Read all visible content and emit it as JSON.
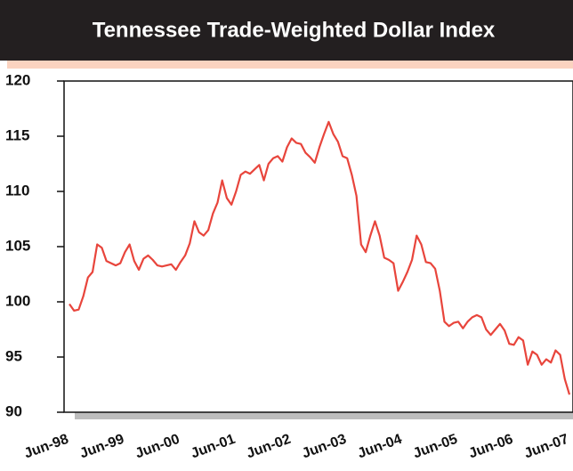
{
  "chart_data": {
    "type": "line",
    "title": "Tennessee Trade-Weighted Dollar Index",
    "categories": [
      "Jun-98",
      null,
      null,
      null,
      null,
      null,
      null,
      null,
      null,
      null,
      null,
      null,
      "Jun-99",
      null,
      null,
      null,
      null,
      null,
      null,
      null,
      null,
      null,
      null,
      null,
      "Jun-00",
      null,
      null,
      null,
      null,
      null,
      null,
      null,
      null,
      null,
      null,
      null,
      "Jun-01",
      null,
      null,
      null,
      null,
      null,
      null,
      null,
      null,
      null,
      null,
      null,
      "Jun-02",
      null,
      null,
      null,
      null,
      null,
      null,
      null,
      null,
      null,
      null,
      null,
      "Jun-03",
      null,
      null,
      null,
      null,
      null,
      null,
      null,
      null,
      null,
      null,
      null,
      "Jun-04",
      null,
      null,
      null,
      null,
      null,
      null,
      null,
      null,
      null,
      null,
      null,
      "Jun-05",
      null,
      null,
      null,
      null,
      null,
      null,
      null,
      null,
      null,
      null,
      null,
      "Jun-06",
      null,
      null,
      null,
      null,
      null,
      null,
      null,
      null,
      null,
      null,
      null,
      "Jun-07"
    ],
    "values": [
      99.8,
      99.2,
      99.3,
      100.5,
      102.2,
      102.7,
      105.2,
      104.9,
      103.7,
      103.5,
      103.3,
      103.5,
      104.5,
      105.2,
      103.7,
      102.9,
      103.9,
      104.2,
      103.8,
      103.3,
      103.2,
      103.3,
      103.4,
      102.9,
      103.6,
      104.2,
      105.3,
      107.3,
      106.3,
      106.0,
      106.5,
      108.0,
      109.0,
      111.0,
      109.4,
      108.8,
      110.0,
      111.5,
      111.8,
      111.6,
      112.0,
      112.4,
      111.0,
      112.5,
      113.0,
      113.2,
      112.7,
      114.0,
      114.8,
      114.4,
      114.3,
      113.5,
      113.1,
      112.6,
      114.0,
      115.2,
      116.3,
      115.2,
      114.5,
      113.2,
      113.0,
      111.5,
      109.6,
      105.2,
      104.5,
      106.0,
      107.3,
      106.0,
      104.0,
      103.8,
      103.5,
      101.0,
      101.8,
      102.7,
      103.8,
      106.0,
      105.2,
      103.6,
      103.5,
      103.0,
      101.0,
      98.2,
      97.8,
      98.1,
      98.2,
      97.6,
      98.2,
      98.6,
      98.8,
      98.6,
      97.5,
      97.0,
      97.5,
      98.0,
      97.4,
      96.2,
      96.1,
      96.8,
      96.5,
      94.3,
      95.5,
      95.2,
      94.3,
      94.8,
      94.5,
      95.6,
      95.2,
      93.0,
      91.6
    ],
    "color": "#e8453c",
    "ylim": [
      90,
      120
    ],
    "yticks": [
      90,
      95,
      100,
      105,
      110,
      115,
      120
    ]
  }
}
